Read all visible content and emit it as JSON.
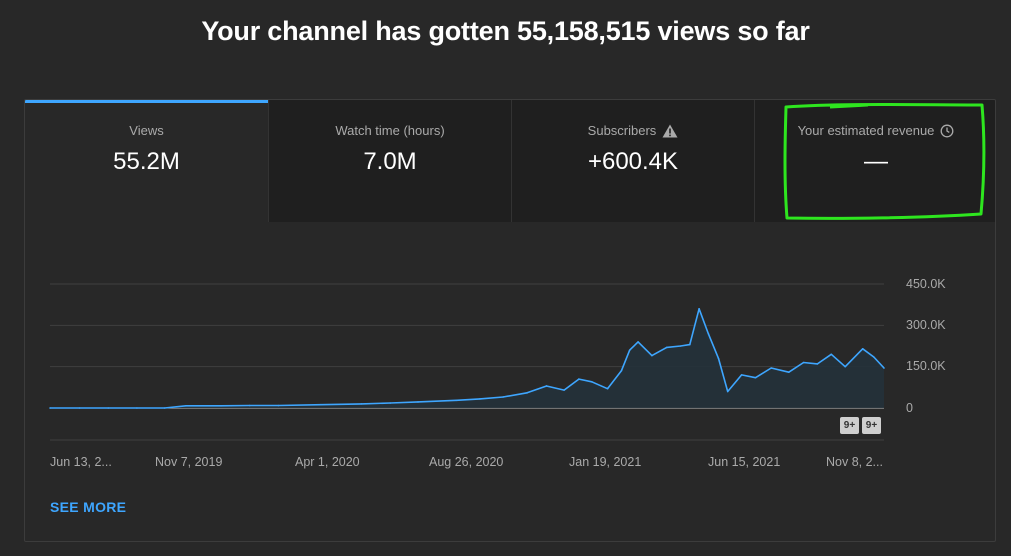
{
  "headline": "Your channel has gotten 55,158,515 views so far",
  "tabs": [
    {
      "label": "Views",
      "value": "55.2M",
      "active": true
    },
    {
      "label": "Watch time (hours)",
      "value": "7.0M"
    },
    {
      "label": "Subscribers",
      "value": "+600.4K",
      "icon": "warning-icon"
    },
    {
      "label": "Your estimated revenue",
      "value": "—",
      "icon": "clock-icon"
    }
  ],
  "annotation_color": "#2ee61f",
  "accent_color": "#3ea6ff",
  "chart_data": {
    "type": "area",
    "series_color": "#3ea6ff",
    "x_ticks": [
      "Jun 13, 2...",
      "Nov 7, 2019",
      "Apr 1, 2020",
      "Aug 26, 2020",
      "Jan 19, 2021",
      "Jun 15, 2021",
      "Nov 8, 2..."
    ],
    "y_ticks": [
      "450.0K",
      "300.0K",
      "150.0K",
      "0"
    ],
    "ylim": [
      0,
      450000
    ],
    "grid": true,
    "x": [
      "2019-06-13",
      "2019-07-15",
      "2019-08-15",
      "2019-09-15",
      "2019-10-15",
      "2019-11-07",
      "2019-12-15",
      "2020-01-15",
      "2020-02-15",
      "2020-04-01",
      "2020-05-15",
      "2020-06-15",
      "2020-07-15",
      "2020-08-26",
      "2020-09-20",
      "2020-10-15",
      "2020-11-10",
      "2020-12-01",
      "2020-12-20",
      "2021-01-05",
      "2021-01-19",
      "2021-02-05",
      "2021-02-20",
      "2021-03-01",
      "2021-03-10",
      "2021-03-25",
      "2021-04-10",
      "2021-04-25",
      "2021-05-05",
      "2021-05-15",
      "2021-05-25",
      "2021-06-05",
      "2021-06-15",
      "2021-06-30",
      "2021-07-15",
      "2021-08-01",
      "2021-08-20",
      "2021-09-05",
      "2021-09-20",
      "2021-10-05",
      "2021-10-20",
      "2021-11-08",
      "2021-11-20",
      "2021-12-01"
    ],
    "values": [
      0,
      0,
      0,
      0,
      0,
      8000,
      8000,
      9000,
      9000,
      12000,
      15000,
      18000,
      22000,
      28000,
      33000,
      40000,
      55000,
      80000,
      65000,
      105000,
      95000,
      70000,
      135000,
      210000,
      240000,
      190000,
      220000,
      225000,
      230000,
      360000,
      270000,
      180000,
      60000,
      120000,
      110000,
      145000,
      130000,
      165000,
      160000,
      195000,
      150000,
      215000,
      185000,
      145000
    ],
    "notes_badges": [
      "9+",
      "9+"
    ]
  },
  "see_more": "SEE MORE"
}
